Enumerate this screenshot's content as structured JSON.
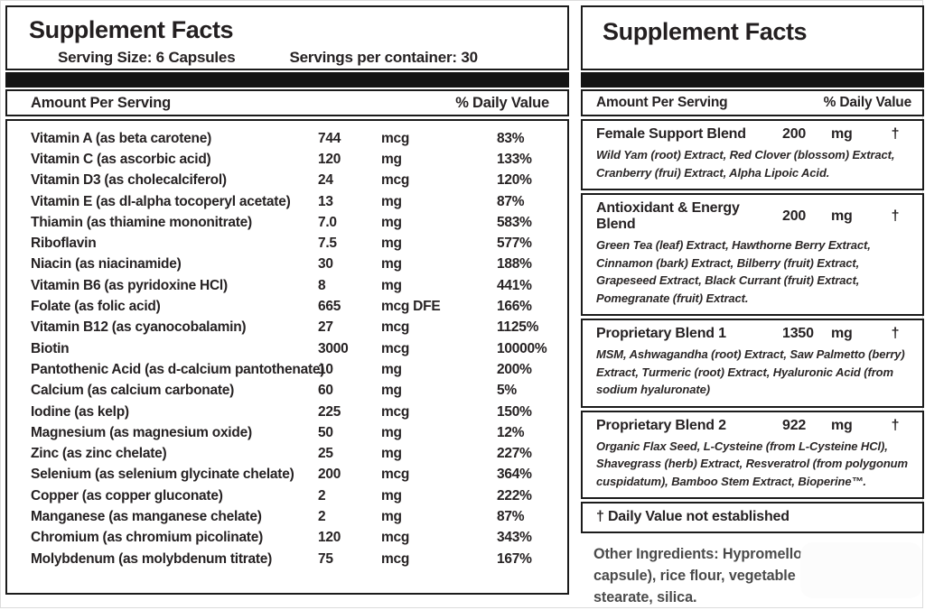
{
  "colors": {
    "text": "#231f20",
    "border": "#1b1b1b",
    "divider_bar": "#141414",
    "background": "#ffffff"
  },
  "left_panel": {
    "title": "Supplement Facts",
    "serving_size": "Serving Size: 6 Capsules",
    "servings_per_container": "Servings per container: 30",
    "amount_header": "Amount Per Serving",
    "dv_header": "% Daily Value",
    "rows": [
      {
        "name": "Vitamin A (as beta carotene)",
        "amount": "744",
        "unit": "mcg",
        "dv": "83%"
      },
      {
        "name": "Vitamin C (as ascorbic acid)",
        "amount": "120",
        "unit": "mg",
        "dv": "133%"
      },
      {
        "name": "Vitamin D3 (as cholecalciferol)",
        "amount": "24",
        "unit": "mcg",
        "dv": "120%"
      },
      {
        "name": "Vitamin E (as dl-alpha tocoperyl acetate)",
        "amount": "13",
        "unit": "mg",
        "dv": "87%"
      },
      {
        "name": "Thiamin (as thiamine mononitrate)",
        "amount": "7.0",
        "unit": "mg",
        "dv": "583%"
      },
      {
        "name": "Riboflavin",
        "amount": "7.5",
        "unit": "mg",
        "dv": "577%"
      },
      {
        "name": "Niacin (as niacinamide)",
        "amount": "30",
        "unit": "mg",
        "dv": "188%"
      },
      {
        "name": "Vitamin B6 (as pyridoxine HCl)",
        "amount": "8",
        "unit": "mg",
        "dv": "441%"
      },
      {
        "name": "Folate (as folic acid)",
        "amount": "665",
        "unit": "mcg DFE",
        "dv": "166%"
      },
      {
        "name": "Vitamin B12 (as cyanocobalamin)",
        "amount": "27",
        "unit": "mcg",
        "dv": "1125%"
      },
      {
        "name": "Biotin",
        "amount": "3000",
        "unit": "mcg",
        "dv": "10000%"
      },
      {
        "name": "Pantothenic Acid (as d-calcium pantothenate)",
        "amount": "10",
        "unit": "mg",
        "dv": "200%"
      },
      {
        "name": "Calcium (as calcium carbonate)",
        "amount": "60",
        "unit": "mg",
        "dv": "5%"
      },
      {
        "name": "Iodine (as kelp)",
        "amount": "225",
        "unit": "mcg",
        "dv": "150%"
      },
      {
        "name": "Magnesium (as magnesium oxide)",
        "amount": "50",
        "unit": "mg",
        "dv": "12%"
      },
      {
        "name": "Zinc (as zinc chelate)",
        "amount": "25",
        "unit": "mg",
        "dv": "227%"
      },
      {
        "name": "Selenium (as selenium glycinate chelate)",
        "amount": "200",
        "unit": "mcg",
        "dv": "364%"
      },
      {
        "name": "Copper (as copper gluconate)",
        "amount": "2",
        "unit": "mg",
        "dv": "222%"
      },
      {
        "name": "Manganese (as manganese chelate)",
        "amount": "2",
        "unit": "mg",
        "dv": "87%"
      },
      {
        "name": "Chromium (as chromium picolinate)",
        "amount": "120",
        "unit": "mcg",
        "dv": "343%"
      },
      {
        "name": "Molybdenum (as molybdenum titrate)",
        "amount": "75",
        "unit": "mcg",
        "dv": "167%"
      }
    ]
  },
  "right_panel": {
    "title": "Supplement Facts",
    "amount_header": "Amount Per Serving",
    "dv_header": "% Daily Value",
    "blends": [
      {
        "name": "Female Support Blend",
        "amount": "200",
        "unit": "mg",
        "dv": "†",
        "ingredients": "Wild Yam (root) Extract, Red Clover (blossom) Extract, Cranberry (frui) Extract, Alpha Lipoic Acid."
      },
      {
        "name": "Antioxidant & Energy Blend",
        "amount": "200",
        "unit": "mg",
        "dv": "†",
        "ingredients": "Green Tea (leaf) Extract, Hawthorne Berry Extract, Cinnamon (bark) Extract, Bilberry (fruit) Extract, Grapeseed Extract, Black Currant (fruit) Extract, Pomegranate (fruit) Extract."
      },
      {
        "name": "Proprietary Blend 1",
        "amount": "1350",
        "unit": "mg",
        "dv": "†",
        "ingredients": "MSM, Ashwagandha (root) Extract, Saw Palmetto (berry) Extract, Turmeric (root) Extract, Hyaluronic Acid (from sodium hyaluronate)"
      },
      {
        "name": "Proprietary Blend 2",
        "amount": "922",
        "unit": "mg",
        "dv": "†",
        "ingredients": "Organic Flax Seed, L-Cysteine (from L-Cysteine HCl), Shavegrass (herb) Extract, Resveratrol (from polygonum cuspidatum), Bamboo Stem Extract, Bioperine™."
      }
    ],
    "footnote": "† Daily Value not established",
    "other_ingredients": "Other Ingredients: Hypromellose (veggie capsule), rice flour, vegetable magnesium stearate, silica."
  }
}
